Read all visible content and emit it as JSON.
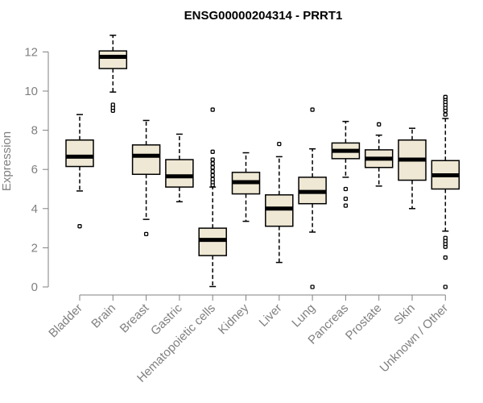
{
  "chart_data": {
    "type": "box",
    "title": "ENSG00000204314 - PRRT1",
    "ylabel": "Expression",
    "xlabel": "",
    "ylim": [
      0,
      12.5
    ],
    "yticks": [
      0,
      2,
      4,
      6,
      8,
      10,
      12
    ],
    "grid": false,
    "colors": {
      "box_fill": "#efe8d4",
      "box_stroke": "#000000",
      "axis": "#808080"
    },
    "categories": [
      "Bladder",
      "Brain",
      "Breast",
      "Gastric",
      "Hematopoietic cells",
      "Kidney",
      "Liver",
      "Lung",
      "Pancreas",
      "Prostate",
      "Skin",
      "Unknown / Other"
    ],
    "boxes": [
      {
        "min": 4.9,
        "q1": 6.15,
        "median": 6.65,
        "q3": 7.5,
        "max": 8.8,
        "outliers": [
          3.1
        ]
      },
      {
        "min": 9.95,
        "q1": 11.15,
        "median": 11.75,
        "q3": 12.05,
        "max": 12.85,
        "outliers": [
          9.0,
          9.15,
          9.3
        ]
      },
      {
        "min": 3.45,
        "q1": 5.75,
        "median": 6.7,
        "q3": 7.25,
        "max": 8.5,
        "outliers": [
          2.7
        ]
      },
      {
        "min": 4.35,
        "q1": 5.1,
        "median": 5.65,
        "q3": 6.5,
        "max": 7.8,
        "outliers": []
      },
      {
        "min": 0.02,
        "q1": 1.6,
        "median": 2.4,
        "q3": 3.0,
        "max": 5.1,
        "outliers": [
          5.2,
          5.35,
          5.5,
          5.7,
          5.9,
          6.1,
          6.3,
          6.5,
          6.9,
          9.05
        ]
      },
      {
        "min": 3.35,
        "q1": 4.75,
        "median": 5.35,
        "q3": 5.85,
        "max": 6.85,
        "outliers": []
      },
      {
        "min": 1.25,
        "q1": 3.1,
        "median": 4.0,
        "q3": 4.7,
        "max": 6.65,
        "outliers": [
          7.3
        ]
      },
      {
        "min": 2.8,
        "q1": 4.25,
        "median": 4.85,
        "q3": 5.6,
        "max": 7.05,
        "outliers": [
          0.0,
          9.05
        ]
      },
      {
        "min": 5.6,
        "q1": 6.55,
        "median": 6.95,
        "q3": 7.35,
        "max": 8.45,
        "outliers": [
          4.15,
          4.5,
          5.0
        ]
      },
      {
        "min": 5.15,
        "q1": 6.1,
        "median": 6.55,
        "q3": 7.0,
        "max": 7.75,
        "outliers": [
          8.3
        ]
      },
      {
        "min": 4.0,
        "q1": 5.45,
        "median": 6.5,
        "q3": 7.5,
        "max": 8.1,
        "outliers": []
      },
      {
        "min": 2.85,
        "q1": 5.0,
        "median": 5.7,
        "q3": 6.45,
        "max": 8.6,
        "outliers": [
          0.0,
          1.5,
          2.05,
          2.2,
          2.35,
          2.5,
          8.8,
          9.0,
          9.15,
          9.3,
          9.45,
          9.6,
          9.7
        ]
      }
    ]
  }
}
